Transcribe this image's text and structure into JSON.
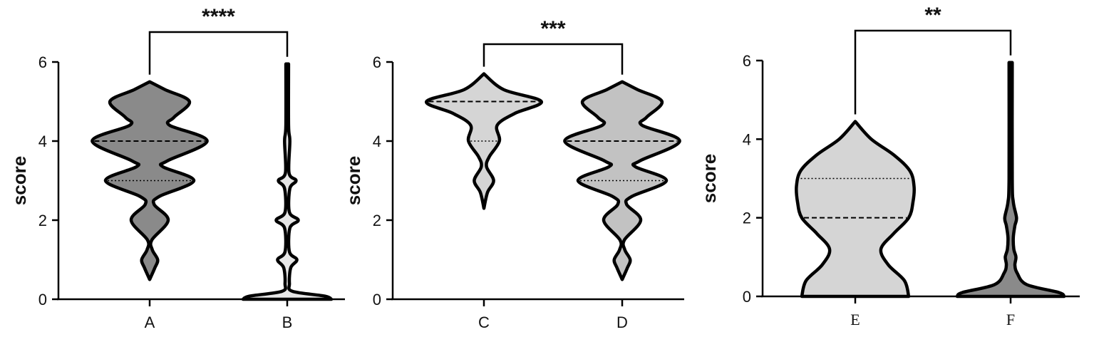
{
  "chart_data": [
    {
      "type": "violin",
      "ylabel": "score",
      "ylim": [
        0,
        6
      ],
      "yticks": [
        "0",
        "2",
        "4",
        "6"
      ],
      "categories": [
        "A",
        "B"
      ],
      "significance": "****",
      "series": [
        {
          "category": "A",
          "fill": "#8a8a8a",
          "min": 0.5,
          "max": 5.5,
          "median": 4,
          "quartiles": [
            3,
            4
          ],
          "density": [
            [
              0.5,
              0.0
            ],
            [
              0.8,
              0.12
            ],
            [
              1,
              0.18
            ],
            [
              1.25,
              0.06
            ],
            [
              1.5,
              0.05
            ],
            [
              2,
              0.42
            ],
            [
              2.4,
              0.1
            ],
            [
              2.6,
              0.22
            ],
            [
              3,
              1.0
            ],
            [
              3.35,
              0.3
            ],
            [
              3.5,
              0.4
            ],
            [
              4,
              1.3
            ],
            [
              4.4,
              0.45
            ],
            [
              4.6,
              0.55
            ],
            [
              5,
              0.9
            ],
            [
              5.3,
              0.35
            ],
            [
              5.5,
              0.0
            ]
          ]
        },
        {
          "category": "B",
          "fill": "#e6e6e6",
          "min": 0,
          "max": 5.95,
          "median": 0,
          "quartiles": [
            0,
            0
          ],
          "density": [
            [
              0,
              1.0
            ],
            [
              0.08,
              0.85
            ],
            [
              0.2,
              0.12
            ],
            [
              0.4,
              0.05
            ],
            [
              0.8,
              0.08
            ],
            [
              1,
              0.22
            ],
            [
              1.2,
              0.05
            ],
            [
              1.8,
              0.06
            ],
            [
              2,
              0.25
            ],
            [
              2.2,
              0.05
            ],
            [
              2.8,
              0.06
            ],
            [
              3,
              0.2
            ],
            [
              3.2,
              0.04
            ],
            [
              4,
              0.06
            ],
            [
              4.4,
              0.03
            ],
            [
              5.95,
              0.03
            ]
          ]
        }
      ]
    },
    {
      "type": "violin",
      "ylabel": "score",
      "ylim": [
        0,
        6
      ],
      "yticks": [
        "0",
        "2",
        "4",
        "6"
      ],
      "categories": [
        "C",
        "D"
      ],
      "significance": "***",
      "series": [
        {
          "category": "C",
          "fill": "#d5d5d5",
          "min": 2.3,
          "max": 5.7,
          "median": 5,
          "quartiles": [
            4,
            5
          ],
          "density": [
            [
              2.3,
              0.0
            ],
            [
              2.7,
              0.08
            ],
            [
              3,
              0.22
            ],
            [
              3.35,
              0.06
            ],
            [
              3.6,
              0.12
            ],
            [
              4,
              0.35
            ],
            [
              4.4,
              0.3
            ],
            [
              4.7,
              0.7
            ],
            [
              5,
              1.3
            ],
            [
              5.3,
              0.45
            ],
            [
              5.7,
              0.0
            ]
          ]
        },
        {
          "category": "D",
          "fill": "#c2c2c2",
          "min": 0.5,
          "max": 5.5,
          "median": 4,
          "quartiles": [
            3,
            4
          ],
          "density": [
            [
              0.5,
              0.0
            ],
            [
              0.8,
              0.12
            ],
            [
              1,
              0.18
            ],
            [
              1.25,
              0.06
            ],
            [
              1.5,
              0.05
            ],
            [
              2,
              0.42
            ],
            [
              2.4,
              0.1
            ],
            [
              2.6,
              0.22
            ],
            [
              3,
              1.0
            ],
            [
              3.35,
              0.3
            ],
            [
              3.5,
              0.4
            ],
            [
              4,
              1.3
            ],
            [
              4.4,
              0.45
            ],
            [
              4.6,
              0.55
            ],
            [
              5,
              0.9
            ],
            [
              5.3,
              0.35
            ],
            [
              5.5,
              0.0
            ]
          ]
        }
      ]
    },
    {
      "type": "violin",
      "ylabel": "score",
      "ylim": [
        0,
        6
      ],
      "yticks": [
        "0",
        "2",
        "4",
        "6"
      ],
      "categories": [
        "E",
        "F"
      ],
      "significance": "**",
      "series": [
        {
          "category": "E",
          "fill": "#d5d5d5",
          "min": 0,
          "max": 4.45,
          "median": 2,
          "quartiles": [
            2,
            3
          ],
          "density": [
            [
              0,
              1.0
            ],
            [
              0.4,
              0.92
            ],
            [
              0.8,
              0.62
            ],
            [
              1.2,
              0.48
            ],
            [
              1.6,
              0.72
            ],
            [
              2,
              1.0
            ],
            [
              2.4,
              1.08
            ],
            [
              2.8,
              1.1
            ],
            [
              3.2,
              1.02
            ],
            [
              3.6,
              0.72
            ],
            [
              4,
              0.3
            ],
            [
              4.45,
              0.0
            ]
          ]
        },
        {
          "category": "F",
          "fill": "#8a8a8a",
          "min": 0,
          "max": 5.95,
          "median": 0,
          "quartiles": [
            0,
            0
          ],
          "density": [
            [
              0,
              1.0
            ],
            [
              0.1,
              0.9
            ],
            [
              0.3,
              0.3
            ],
            [
              0.6,
              0.12
            ],
            [
              0.8,
              0.08
            ],
            [
              1,
              0.1
            ],
            [
              1.2,
              0.06
            ],
            [
              1.5,
              0.05
            ],
            [
              1.8,
              0.08
            ],
            [
              2,
              0.11
            ],
            [
              2.4,
              0.05
            ],
            [
              3,
              0.03
            ],
            [
              5.95,
              0.03
            ]
          ]
        }
      ]
    }
  ]
}
